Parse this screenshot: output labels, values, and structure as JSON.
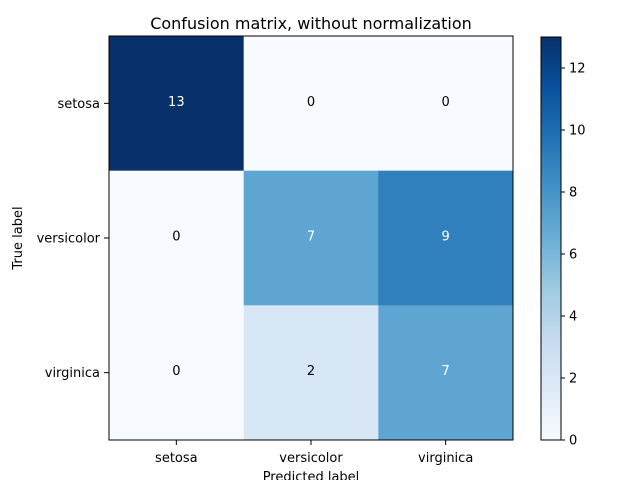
{
  "chart_data": {
    "type": "heatmap",
    "title": "Confusion matrix, without normalization",
    "xlabel": "Predicted label",
    "ylabel": "True label",
    "x_categories": [
      "setosa",
      "versicolor",
      "virginica"
    ],
    "y_categories": [
      "setosa",
      "versicolor",
      "virginica"
    ],
    "values": [
      [
        13,
        0,
        0
      ],
      [
        0,
        7,
        9
      ],
      [
        0,
        2,
        7
      ]
    ],
    "colormap": "Blues",
    "clim": [
      0,
      13
    ],
    "colorbar_ticks": [
      "0",
      "2",
      "4",
      "6",
      "8",
      "10",
      "12"
    ],
    "colors": {
      "low": "#f7fbff",
      "high": "#08306b",
      "dark_text": "#000000",
      "light_text": "#ffffff"
    }
  }
}
